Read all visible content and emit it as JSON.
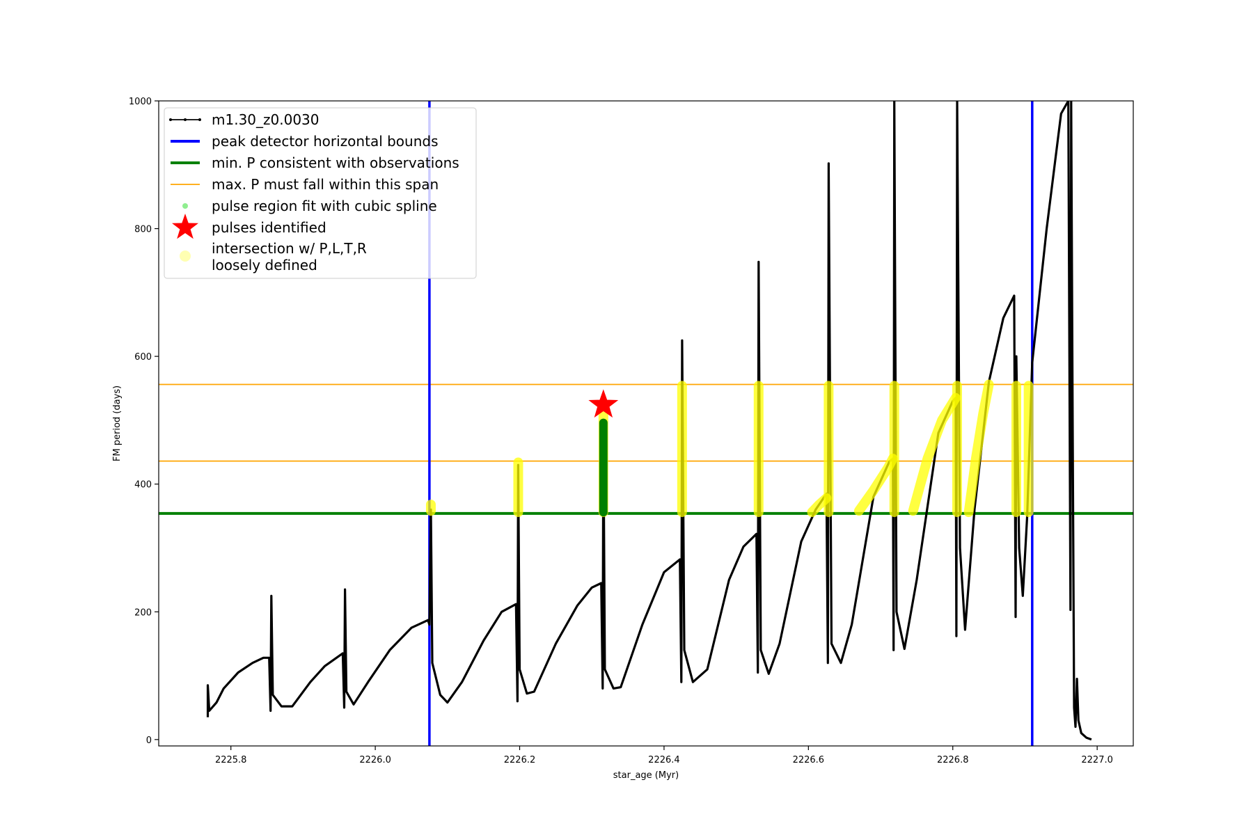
{
  "chart_data": {
    "type": "line",
    "xlabel": "star_age (Myr)",
    "ylabel": "FM period (days)",
    "xlim": [
      2225.7,
      2227.05
    ],
    "ylim": [
      -10,
      1000
    ],
    "xticks": [
      2225.8,
      2226.0,
      2226.2,
      2226.4,
      2226.6,
      2226.8,
      2227.0
    ],
    "xtick_labels": [
      "2225.8",
      "2226.0",
      "2226.2",
      "2226.4",
      "2226.6",
      "2226.8",
      "2227.0"
    ],
    "yticks": [
      0,
      200,
      400,
      600,
      800,
      1000
    ],
    "ytick_labels": [
      "0",
      "200",
      "400",
      "600",
      "800",
      "1000"
    ],
    "grid": false,
    "legend_position": "top-left",
    "legend": {
      "model": "m1.30_z0.0030",
      "peak_bounds": "peak detector horizontal bounds",
      "min_p": "min. P consistent with observations",
      "max_p": "max. P must fall within this span",
      "spline": "pulse region fit with cubic spline",
      "pulses": "pulses identified",
      "intersect_line1": "intersection w/ P,L,T,R",
      "intersect_line2": "loosely defined"
    },
    "colors": {
      "model": "#000000",
      "peak_bounds": "#0000ff",
      "min_p": "#008000",
      "max_p": "#ffa500",
      "spline": "#90ee90",
      "spline_fit": "#008000",
      "pulses": "#ff0000",
      "intersect": "#ffff00"
    },
    "vertical_bounds": [
      2226.075,
      2226.91
    ],
    "min_p_value": 354,
    "max_p_span": [
      436,
      556
    ],
    "series": [
      {
        "name": "m1.30_z0.0030",
        "points": [
          [
            2225.768,
            35
          ],
          [
            2225.768,
            85
          ],
          [
            2225.77,
            45
          ],
          [
            2225.78,
            58
          ],
          [
            2225.79,
            80
          ],
          [
            2225.81,
            105
          ],
          [
            2225.83,
            120
          ],
          [
            2225.845,
            128
          ],
          [
            2225.853,
            128
          ],
          [
            2225.855,
            45
          ],
          [
            2225.856,
            225
          ],
          [
            2225.858,
            70
          ],
          [
            2225.87,
            52
          ],
          [
            2225.885,
            52
          ],
          [
            2225.91,
            90
          ],
          [
            2225.93,
            115
          ],
          [
            2225.955,
            135
          ],
          [
            2225.957,
            50
          ],
          [
            2225.958,
            235
          ],
          [
            2225.96,
            75
          ],
          [
            2225.97,
            55
          ],
          [
            2225.99,
            90
          ],
          [
            2226.02,
            140
          ],
          [
            2226.05,
            175
          ],
          [
            2226.073,
            187
          ],
          [
            2226.075,
            180
          ],
          [
            2226.077,
            360
          ],
          [
            2226.079,
            120
          ],
          [
            2226.09,
            70
          ],
          [
            2226.1,
            58
          ],
          [
            2226.12,
            90
          ],
          [
            2226.15,
            155
          ],
          [
            2226.175,
            200
          ],
          [
            2226.195,
            212
          ],
          [
            2226.197,
            60
          ],
          [
            2226.198,
            430
          ],
          [
            2226.2,
            110
          ],
          [
            2226.21,
            72
          ],
          [
            2226.22,
            75
          ],
          [
            2226.25,
            150
          ],
          [
            2226.28,
            210
          ],
          [
            2226.3,
            238
          ],
          [
            2226.313,
            245
          ],
          [
            2226.315,
            80
          ],
          [
            2226.316,
            490
          ],
          [
            2226.318,
            110
          ],
          [
            2226.33,
            80
          ],
          [
            2226.34,
            82
          ],
          [
            2226.37,
            180
          ],
          [
            2226.4,
            262
          ],
          [
            2226.422,
            282
          ],
          [
            2226.424,
            90
          ],
          [
            2226.425,
            625
          ],
          [
            2226.428,
            140
          ],
          [
            2226.44,
            90
          ],
          [
            2226.46,
            110
          ],
          [
            2226.49,
            250
          ],
          [
            2226.51,
            302
          ],
          [
            2226.528,
            322
          ],
          [
            2226.53,
            105
          ],
          [
            2226.531,
            748
          ],
          [
            2226.534,
            140
          ],
          [
            2226.545,
            103
          ],
          [
            2226.56,
            150
          ],
          [
            2226.59,
            310
          ],
          [
            2226.61,
            360
          ],
          [
            2226.625,
            385
          ],
          [
            2226.627,
            120
          ],
          [
            2226.628,
            902
          ],
          [
            2226.632,
            150
          ],
          [
            2226.645,
            120
          ],
          [
            2226.66,
            180
          ],
          [
            2226.69,
            380
          ],
          [
            2226.712,
            435
          ],
          [
            2226.717,
            440
          ],
          [
            2226.718,
            140
          ],
          [
            2226.719,
            1000
          ],
          [
            2226.722,
            200
          ],
          [
            2226.733,
            142
          ],
          [
            2226.75,
            250
          ],
          [
            2226.78,
            480
          ],
          [
            2226.8,
            530
          ],
          [
            2226.804,
            535
          ],
          [
            2226.805,
            162
          ],
          [
            2226.806,
            1000
          ],
          [
            2226.81,
            300
          ],
          [
            2226.817,
            172
          ],
          [
            2226.83,
            360
          ],
          [
            2226.85,
            560
          ],
          [
            2226.87,
            660
          ],
          [
            2226.885,
            695
          ],
          [
            2226.887,
            192
          ],
          [
            2226.888,
            600
          ],
          [
            2226.892,
            300
          ],
          [
            2226.897,
            225
          ],
          [
            2226.903,
            350
          ],
          [
            2226.91,
            590
          ],
          [
            2226.93,
            800
          ],
          [
            2226.95,
            980
          ],
          [
            2226.96,
            1000
          ],
          [
            2226.963,
            203
          ],
          [
            2226.964,
            1000
          ],
          [
            2226.966,
            500
          ],
          [
            2226.968,
            50
          ],
          [
            2226.97,
            20
          ],
          [
            2226.972,
            95
          ],
          [
            2226.974,
            30
          ],
          [
            2226.978,
            10
          ],
          [
            2226.985,
            3
          ],
          [
            2226.992,
            0
          ]
        ]
      }
    ],
    "spline_fit": {
      "x": 2226.316,
      "y_range": [
        356,
        496
      ]
    },
    "pulses_identified": [
      {
        "x": 2226.316,
        "y": 524
      }
    ],
    "intersections": [
      {
        "x": [
          2226.077
        ],
        "y": [
          358,
          368
        ]
      },
      {
        "x": [
          2226.198
        ],
        "y": [
          356,
          434
        ]
      },
      {
        "x": [
          2226.316
        ],
        "y": [
          356,
          520
        ]
      },
      {
        "x": [
          2226.425
        ],
        "y": [
          356,
          554
        ]
      },
      {
        "x": [
          2226.531
        ],
        "y": [
          356,
          554
        ]
      },
      {
        "x": [
          2226.605,
          2226.615,
          2226.625
        ],
        "y": [
          356,
          368,
          378
        ]
      },
      {
        "x": [
          2226.628
        ],
        "y": [
          356,
          554
        ]
      },
      {
        "x": [
          2226.67,
          2226.69,
          2226.71,
          2226.717
        ],
        "y": [
          358,
          390,
          425,
          440
        ]
      },
      {
        "x": [
          2226.719
        ],
        "y": [
          356,
          554
        ]
      },
      {
        "x": [
          2226.745,
          2226.765,
          2226.785,
          2226.804
        ],
        "y": [
          358,
          440,
          500,
          535
        ]
      },
      {
        "x": [
          2226.806
        ],
        "y": [
          356,
          554
        ]
      },
      {
        "x": [
          2226.822,
          2226.832,
          2226.842,
          2226.85
        ],
        "y": [
          356,
          440,
          510,
          556
        ]
      },
      {
        "x": [
          2226.888
        ],
        "y": [
          356,
          554
        ]
      },
      {
        "x": [
          2226.905
        ],
        "y": [
          356,
          554
        ]
      }
    ]
  }
}
